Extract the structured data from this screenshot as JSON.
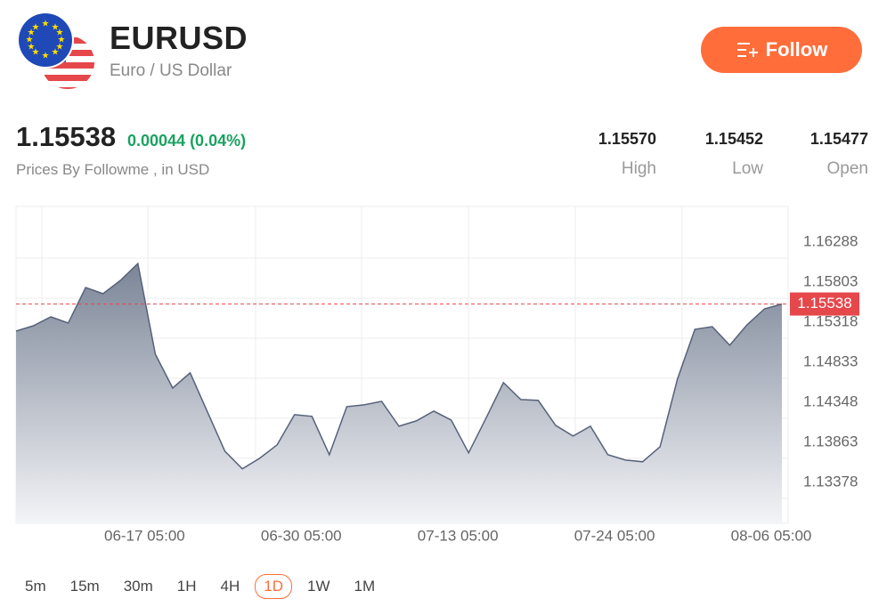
{
  "header": {
    "symbol": "EURUSD",
    "name": "Euro / US Dollar",
    "follow": "Follow"
  },
  "quote": {
    "price": "1.15538",
    "change": "0.00044 (0.04%)",
    "source": "Prices By Followme , in USD",
    "stats": [
      {
        "value": "1.15570",
        "label": "High"
      },
      {
        "value": "1.15452",
        "label": "Low"
      },
      {
        "value": "1.15477",
        "label": "Open"
      }
    ]
  },
  "timeframes": {
    "items": [
      "5m",
      "15m",
      "30m",
      "1H",
      "4H",
      "1D",
      "1W",
      "1M"
    ],
    "selected": "1D"
  },
  "chart_data": {
    "type": "area",
    "categories": [
      null,
      null,
      null,
      null,
      null,
      null,
      null,
      null,
      "06-17 05:00",
      null,
      null,
      null,
      null,
      null,
      null,
      null,
      null,
      "06-30 05:00",
      null,
      null,
      null,
      null,
      null,
      null,
      null,
      null,
      "07-13 05:00",
      null,
      null,
      null,
      null,
      null,
      null,
      null,
      null,
      "07-24 05:00",
      null,
      null,
      null,
      null,
      null,
      null,
      null,
      null,
      "08-06 05:00"
    ],
    "values": [
      1.1521,
      1.15275,
      1.15383,
      1.15307,
      1.15738,
      1.15663,
      1.15825,
      1.16029,
      1.1493,
      1.1452,
      1.14704,
      1.14229,
      1.13755,
      1.1354,
      1.13669,
      1.13831,
      1.14197,
      1.14176,
      1.13712,
      1.14294,
      1.14316,
      1.14359,
      1.14057,
      1.14122,
      1.1424,
      1.14132,
      1.13734,
      1.14154,
      1.14585,
      1.1438,
      1.1437,
      1.14068,
      1.13938,
      1.14057,
      1.13712,
      1.13647,
      1.13626,
      1.13809,
      1.14628,
      1.15232,
      1.15264,
      1.15038,
      1.15286,
      1.1548,
      1.15538
    ],
    "color": "#56627a",
    "last_price": 1.15538,
    "ylim": [
      1.1288,
      1.1672
    ],
    "yticks": [
      1.13378,
      1.13863,
      1.14348,
      1.14833,
      1.15318,
      1.15803,
      1.16288
    ],
    "grid": true
  }
}
